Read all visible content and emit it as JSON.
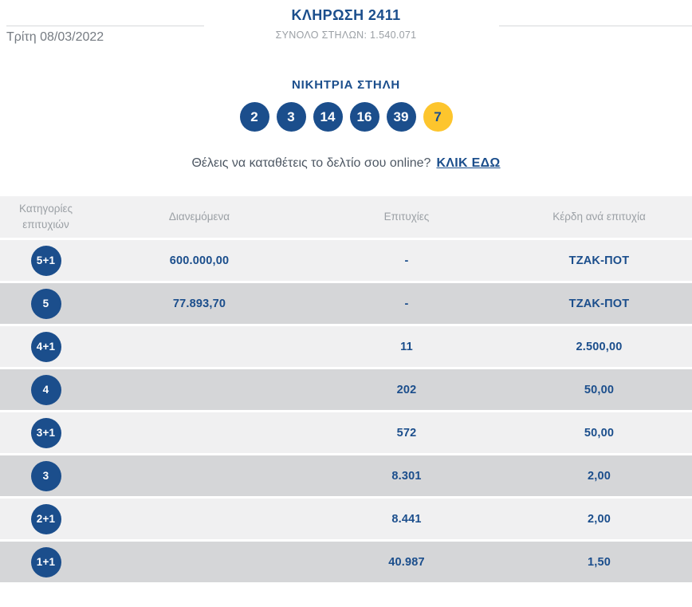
{
  "header": {
    "draw_title": "ΚΛΗΡΩΣΗ 2411",
    "total_columns": "ΣΥΝΟΛΟ ΣΤΗΛΩΝ: 1.540.071",
    "date": "Τρίτη 08/03/2022"
  },
  "winning": {
    "title": "ΝΙΚΗΤΡΙΑ ΣΤΗΛΗ",
    "numbers": [
      "2",
      "3",
      "14",
      "16",
      "39"
    ],
    "bonus": "7"
  },
  "promo": {
    "text": "Θέλεις να καταθέτεις το δελτίο σου online?",
    "link_label": "ΚΛΙΚ ΕΔΩ"
  },
  "table": {
    "headers": {
      "categories_line1": "Κατηγορίες",
      "categories_line2": "επιτυχιών",
      "distributed": "Διανεμόμενα",
      "winners": "Επιτυχίες",
      "prize": "Κέρδη ανά επιτυχία"
    },
    "rows": [
      {
        "category": "5+1",
        "distributed": "600.000,00",
        "winners": "-",
        "prize": "ΤΖΑΚ-ΠΟΤ"
      },
      {
        "category": "5",
        "distributed": "77.893,70",
        "winners": "-",
        "prize": "ΤΖΑΚ-ΠΟΤ"
      },
      {
        "category": "4+1",
        "distributed": "",
        "winners": "11",
        "prize": "2.500,00"
      },
      {
        "category": "4",
        "distributed": "",
        "winners": "202",
        "prize": "50,00"
      },
      {
        "category": "3+1",
        "distributed": "",
        "winners": "572",
        "prize": "50,00"
      },
      {
        "category": "3",
        "distributed": "",
        "winners": "8.301",
        "prize": "2,00"
      },
      {
        "category": "2+1",
        "distributed": "",
        "winners": "8.441",
        "prize": "2,00"
      },
      {
        "category": "1+1",
        "distributed": "",
        "winners": "40.987",
        "prize": "1,50"
      }
    ]
  },
  "colors": {
    "navy": "#1b4e8c",
    "bonus_yellow": "#fdc52d",
    "row_light": "#f0f0f1",
    "row_dark": "#d5d6d8",
    "header_band": "#f1f1f2",
    "muted_text": "#9ba0a5"
  }
}
